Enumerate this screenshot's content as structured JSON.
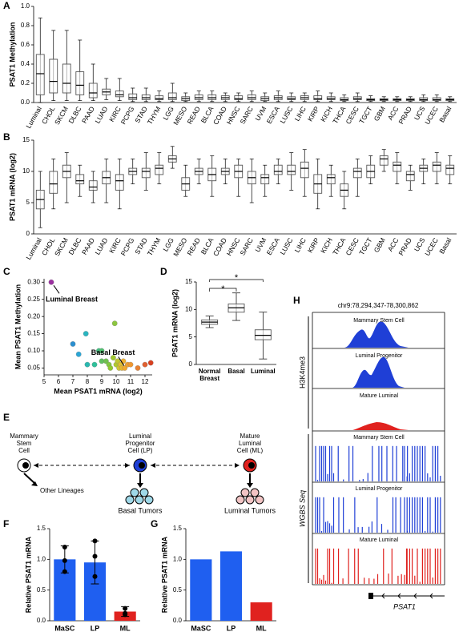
{
  "panel_labels": [
    "A",
    "B",
    "C",
    "D",
    "E",
    "F",
    "G",
    "H"
  ],
  "chart_data": [
    {
      "type": "box",
      "ylabel": "PSAT1 Methylation",
      "categories": [
        "Luminal",
        "CHOL",
        "SKCM",
        "DLBC",
        "PAAD",
        "LUAD",
        "KIRC",
        "PCPG",
        "STAD",
        "THYM",
        "LGG",
        "MESO",
        "READ",
        "BLCA",
        "COAD",
        "HNSC",
        "SARC",
        "UVM",
        "ESCA",
        "LUSC",
        "LIHC",
        "KIRP",
        "KICH",
        "THCA",
        "CESC",
        "TGCT",
        "GBM",
        "ACC",
        "PRAD",
        "UCS",
        "UCEC",
        "Basal"
      ],
      "category_colors": [
        "#d62020",
        "#000",
        "#000",
        "#000",
        "#000",
        "#000",
        "#000",
        "#000",
        "#000",
        "#000",
        "#000",
        "#000",
        "#000",
        "#000",
        "#000",
        "#000",
        "#000",
        "#000",
        "#000",
        "#000",
        "#000",
        "#000",
        "#000",
        "#000",
        "#000",
        "#000",
        "#000",
        "#000",
        "#000",
        "#000",
        "#000",
        "#1f3fd6"
      ],
      "whisker_low": [
        0,
        0.02,
        0.02,
        0.02,
        0.02,
        0.03,
        0.02,
        0.01,
        0.01,
        0.01,
        0.01,
        0.01,
        0.01,
        0.01,
        0.01,
        0.01,
        0.01,
        0.01,
        0.01,
        0.01,
        0.01,
        0.01,
        0.01,
        0.01,
        0.01,
        0.01,
        0.01,
        0.01,
        0.01,
        0.01,
        0.01,
        0.01
      ],
      "q1": [
        0.08,
        0.1,
        0.1,
        0.08,
        0.05,
        0.08,
        0.06,
        0.03,
        0.03,
        0.03,
        0.03,
        0.02,
        0.03,
        0.03,
        0.03,
        0.03,
        0.03,
        0.02,
        0.03,
        0.03,
        0.03,
        0.03,
        0.03,
        0.02,
        0.03,
        0.02,
        0.02,
        0.02,
        0.02,
        0.02,
        0.02,
        0.02
      ],
      "median": [
        0.3,
        0.22,
        0.2,
        0.18,
        0.1,
        0.11,
        0.08,
        0.05,
        0.05,
        0.04,
        0.05,
        0.04,
        0.05,
        0.05,
        0.05,
        0.04,
        0.05,
        0.04,
        0.05,
        0.04,
        0.05,
        0.04,
        0.04,
        0.03,
        0.04,
        0.03,
        0.03,
        0.03,
        0.03,
        0.03,
        0.03,
        0.03
      ],
      "q3": [
        0.5,
        0.45,
        0.4,
        0.32,
        0.2,
        0.14,
        0.12,
        0.09,
        0.08,
        0.07,
        0.1,
        0.06,
        0.08,
        0.08,
        0.07,
        0.07,
        0.08,
        0.06,
        0.07,
        0.06,
        0.07,
        0.07,
        0.06,
        0.05,
        0.06,
        0.04,
        0.04,
        0.04,
        0.04,
        0.05,
        0.05,
        0.04
      ],
      "whisker_high": [
        0.88,
        0.75,
        0.75,
        0.65,
        0.4,
        0.25,
        0.25,
        0.15,
        0.15,
        0.12,
        0.2,
        0.1,
        0.12,
        0.12,
        0.1,
        0.1,
        0.12,
        0.1,
        0.12,
        0.1,
        0.1,
        0.12,
        0.1,
        0.08,
        0.1,
        0.07,
        0.06,
        0.06,
        0.06,
        0.08,
        0.08,
        0.06
      ],
      "color": "#555555",
      "ylim": [
        0,
        1.0
      ],
      "yticks": [
        {
          "value": 0,
          "label": "0.0"
        },
        {
          "value": 0.2,
          "label": "0.2"
        },
        {
          "value": 0.4,
          "label": "0.4"
        },
        {
          "value": 0.6,
          "label": "0.6"
        },
        {
          "value": 0.8,
          "label": "0.8"
        },
        {
          "value": 1.0,
          "label": "1.0"
        }
      ]
    },
    {
      "type": "box",
      "ylabel": "PSAT1 mRNA (log2)",
      "categories": [
        "Luminal",
        "CHOL",
        "SKCM",
        "DLBC",
        "PAAD",
        "LUAD",
        "KIRC",
        "PCPG",
        "STAD",
        "THYM",
        "LGG",
        "MESO",
        "READ",
        "BLCA",
        "COAD",
        "HNSC",
        "SARC",
        "UVM",
        "ESCA",
        "LUSC",
        "LIHC",
        "KIRP",
        "KICH",
        "THCA",
        "CESC",
        "TGCT",
        "GBM",
        "ACC",
        "PRAD",
        "UCS",
        "UCEC",
        "Basal"
      ],
      "category_colors": [
        "#d62020",
        "#000",
        "#000",
        "#000",
        "#000",
        "#000",
        "#000",
        "#000",
        "#000",
        "#000",
        "#000",
        "#000",
        "#000",
        "#000",
        "#000",
        "#000",
        "#000",
        "#000",
        "#000",
        "#000",
        "#000",
        "#000",
        "#000",
        "#000",
        "#000",
        "#000",
        "#000",
        "#000",
        "#000",
        "#000",
        "#000",
        "#1f3fd6"
      ],
      "whisker_low": [
        1,
        4,
        5,
        6,
        5,
        5,
        4,
        8,
        7,
        8,
        10.5,
        6,
        8,
        6,
        8,
        6,
        5,
        6,
        8,
        7,
        6,
        4,
        6,
        4,
        6,
        8,
        10,
        8,
        7,
        8,
        8,
        8
      ],
      "q1": [
        4,
        6.5,
        9,
        8,
        7,
        8,
        7,
        9.5,
        9,
        9.5,
        11.5,
        7,
        9.5,
        8.5,
        9.5,
        9,
        8,
        8,
        9.5,
        9.5,
        9,
        6.5,
        8,
        6,
        9,
        9,
        11,
        10,
        8.5,
        10,
        10,
        9.5
      ],
      "median": [
        5.5,
        8,
        10,
        8.5,
        7.5,
        9,
        8.5,
        10,
        10,
        10.5,
        12,
        8,
        10,
        9.5,
        10,
        10,
        9,
        9,
        10,
        10,
        10.5,
        8,
        9,
        7,
        10,
        10,
        12,
        11,
        9.5,
        10.5,
        11,
        10.5
      ],
      "q3": [
        7,
        10,
        11,
        9.5,
        8.5,
        10,
        9.5,
        10.5,
        10.5,
        11,
        12.5,
        9,
        10.5,
        10.5,
        10.5,
        11,
        10,
        9.5,
        11,
        11,
        11.5,
        9.5,
        9.5,
        8,
        10.5,
        11,
        12.5,
        11.5,
        10,
        11,
        11.5,
        11
      ],
      "whisker_high": [
        10,
        12,
        13,
        11,
        10,
        12,
        12,
        12,
        13,
        13,
        14,
        11,
        12,
        12.5,
        12,
        12,
        12,
        11,
        12,
        13,
        13.5,
        12,
        11,
        10,
        12,
        12.5,
        13.5,
        13,
        11,
        12,
        13,
        12.5
      ],
      "color": "#555555",
      "ylim": [
        0,
        15
      ],
      "yticks": [
        0,
        5,
        10,
        15
      ]
    },
    {
      "type": "scatter",
      "xlabel": "Mean PSAT1 mRNA (log2)",
      "ylabel": "Mean PSAT1 Methylation",
      "annotations": [
        "Luminal Breast",
        "Basal Breast"
      ],
      "x": [
        5.5,
        7.0,
        7.4,
        7.9,
        8.0,
        8.5,
        8.8,
        9.0,
        9.0,
        9.3,
        9.5,
        9.6,
        9.8,
        9.9,
        10.0,
        10.1,
        10.2,
        10.3,
        10.4,
        10.5,
        10.6,
        10.8,
        11.0,
        11.5,
        12.0,
        12.4
      ],
      "values": [
        0.3,
        0.12,
        0.09,
        0.15,
        0.06,
        0.06,
        0.1,
        0.1,
        0.07,
        0.07,
        0.06,
        0.05,
        0.08,
        0.18,
        0.06,
        0.07,
        0.05,
        0.06,
        0.05,
        0.07,
        0.05,
        0.06,
        0.06,
        0.05,
        0.06,
        0.065
      ],
      "colors": [
        "#9b30a0",
        "#2a8fd0",
        "#2aa6d6",
        "#2ab5c0",
        "#2ab8b0",
        "#30c09a",
        "#40c080",
        "#50c070",
        "#60c060",
        "#70c050",
        "#80c840",
        "#90c830",
        "#a0c830",
        "#8cc63f",
        "#b0c830",
        "#c0c830",
        "#d0c830",
        "#e0c030",
        "#e8b830",
        "#f0b030",
        "#f0a830",
        "#f0a030",
        "#f09830",
        "#e88030",
        "#e06030",
        "#d84020"
      ],
      "xlim": [
        5,
        12.5
      ],
      "xticks": [
        5,
        6,
        7,
        8,
        9,
        10,
        11,
        12
      ],
      "ylim": [
        0.03,
        0.31
      ],
      "yticks": [
        {
          "value": 0.05,
          "label": "0.05"
        },
        {
          "value": 0.1,
          "label": "0.10"
        },
        {
          "value": 0.15,
          "label": "0.15"
        },
        {
          "value": 0.2,
          "label": "0.20"
        },
        {
          "value": 0.25,
          "label": "0.25"
        },
        {
          "value": 0.3,
          "label": "0.30"
        }
      ]
    },
    {
      "type": "box",
      "ylabel": "PSAT1 mRNA (log2)",
      "annotations": [
        "*",
        "*"
      ],
      "categories": [
        "Normal Breast",
        "Basal",
        "Luminal"
      ],
      "category_colors": [
        "#000",
        "#000",
        "#000"
      ],
      "whisker_low": [
        6.7,
        8,
        1
      ],
      "q1": [
        7.3,
        9.5,
        4.5
      ],
      "median": [
        7.7,
        10.3,
        5.3
      ],
      "q3": [
        8.1,
        11,
        6.3
      ],
      "whisker_high": [
        8.8,
        13,
        9.5
      ],
      "color": "#555555",
      "ylim": [
        0,
        15
      ],
      "yticks": [
        0,
        5,
        10,
        15
      ]
    },
    {
      "type": "bar",
      "ylabel": "Relative PSAT1 mRNA",
      "categories": [
        "MaSC",
        "LP",
        "ML"
      ],
      "values": [
        1.0,
        0.95,
        0.15
      ],
      "errors": [
        0.22,
        0.35,
        0.08
      ],
      "points": [
        [
          1.2,
          0.8,
          0.98
        ],
        [
          1.05,
          0.72,
          1.3
        ],
        [
          0.2,
          0.12,
          0.1
        ]
      ],
      "colors": [
        "#1f5ff0",
        "#1f5ff0",
        "#e0221f"
      ],
      "ylim": [
        0,
        1.5
      ],
      "yticks": [
        {
          "value": 0,
          "label": "0.0"
        },
        {
          "value": 0.5,
          "label": "0.5"
        },
        {
          "value": 1.0,
          "label": "1.0"
        },
        {
          "value": 1.5,
          "label": "1.5"
        }
      ]
    },
    {
      "type": "bar",
      "ylabel": "Relative PSAT1 mRNA",
      "categories": [
        "MaSC",
        "LP",
        "ML"
      ],
      "values": [
        1.0,
        1.13,
        0.3
      ],
      "colors": [
        "#1f5ff0",
        "#1f5ff0",
        "#e0221f"
      ],
      "ylim": [
        0,
        1.5
      ],
      "yticks": [
        {
          "value": 0,
          "label": "0.0"
        },
        {
          "value": 0.5,
          "label": "0.5"
        },
        {
          "value": 1.0,
          "label": "1.0"
        },
        {
          "value": 1.5,
          "label": "1.5"
        }
      ]
    }
  ],
  "diagram": {
    "cells": [
      [
        "Mammary",
        "Stem",
        "Cell"
      ],
      [
        "Luminal",
        "Progenitor",
        "Cell (LP)"
      ],
      [
        "Mature",
        "Luminal",
        "Cell (ML)"
      ]
    ],
    "other": "Other Lineages",
    "tumors": [
      "Basal Tumors",
      "Luminal Tumors"
    ]
  },
  "tracks": {
    "region": "chr9:78,294,347-78,300,862",
    "groups": [
      "H3K4me3",
      "WGBS Seq"
    ],
    "names": [
      "Mammary Stem Cell",
      "Luminal Progenitor",
      "Mature Luminal",
      "Mammary Stem Cell",
      "Luminal Progenitor",
      "Mature Luminal"
    ],
    "gene": "PSAT1"
  }
}
